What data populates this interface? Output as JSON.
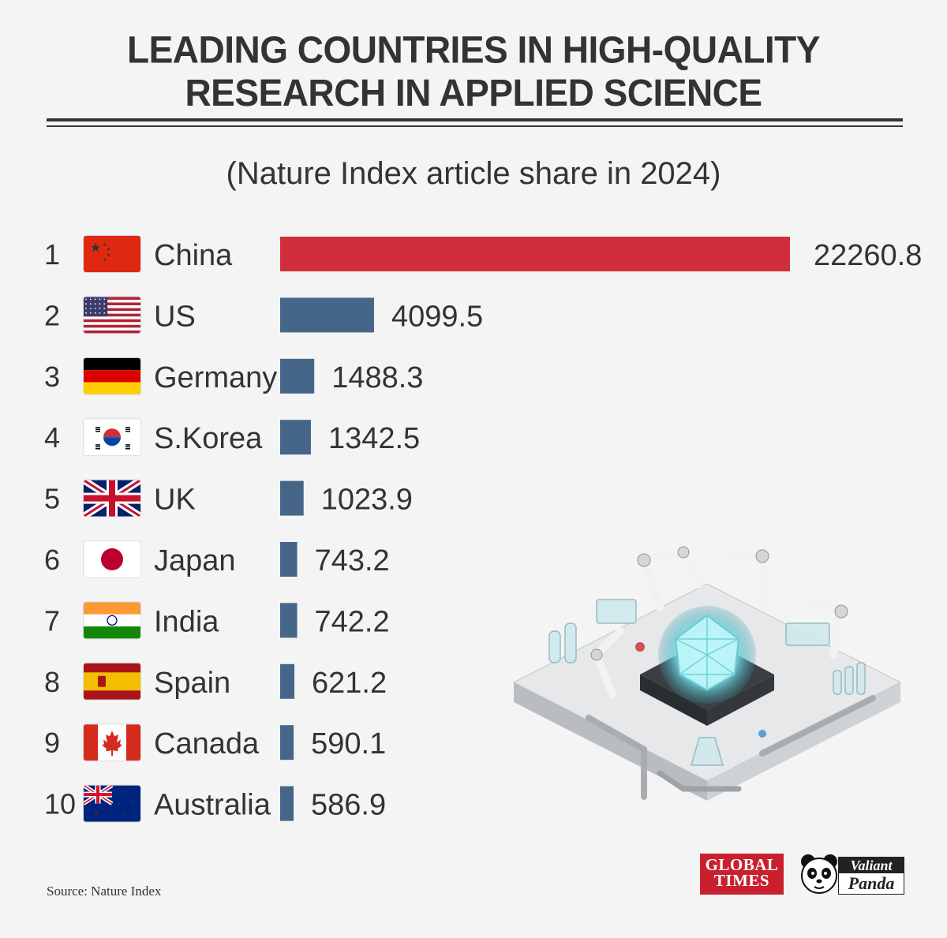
{
  "title": {
    "line1": "LEADING COUNTRIES IN HIGH-QUALITY",
    "line2": "RESEARCH IN APPLIED SCIENCE"
  },
  "subtitle": "(Nature Index article share in 2024)",
  "colors": {
    "china_bar": "#d12e3c",
    "other_bar": "#456688",
    "background": "#f4f4f4",
    "text": "#333333"
  },
  "chart_data": {
    "type": "bar",
    "orientation": "horizontal",
    "title": "LEADING COUNTRIES IN HIGH-QUALITY RESEARCH IN APPLIED SCIENCE",
    "subtitle": "(Nature Index article share in 2024)",
    "xlabel": "",
    "ylabel": "",
    "grid": false,
    "legend": "none",
    "xlim": [
      0,
      22260.8
    ],
    "ranks": [
      "1",
      "2",
      "3",
      "4",
      "5",
      "6",
      "7",
      "8",
      "9",
      "10"
    ],
    "categories": [
      "China",
      "US",
      "Germany",
      "S.Korea",
      "UK",
      "Japan",
      "India",
      "Spain",
      "Canada",
      "Australia"
    ],
    "flag_icons": [
      "flag-china-icon",
      "flag-us-icon",
      "flag-germany-icon",
      "flag-south-korea-icon",
      "flag-uk-icon",
      "flag-japan-icon",
      "flag-india-icon",
      "flag-spain-icon",
      "flag-canada-icon",
      "flag-australia-icon"
    ],
    "values": [
      22260.8,
      4099.5,
      1488.3,
      1342.5,
      1023.9,
      743.2,
      742.2,
      621.2,
      590.1,
      586.9
    ],
    "value_labels": [
      "22260.8",
      "4099.5",
      "1488.3",
      "1342.5",
      "1023.9",
      "743.2",
      "742.2",
      "621.2",
      "590.1",
      "586.9"
    ]
  },
  "illustration": {
    "icon": "robotic-laboratory-illustration-icon"
  },
  "source": "Source: Nature Index",
  "logos": {
    "global_times": {
      "line1": "GLOBAL",
      "line2": "TIMES"
    },
    "valiant_panda": {
      "line1": "Valiant",
      "line2": "Panda",
      "icon": "panda-icon"
    }
  }
}
